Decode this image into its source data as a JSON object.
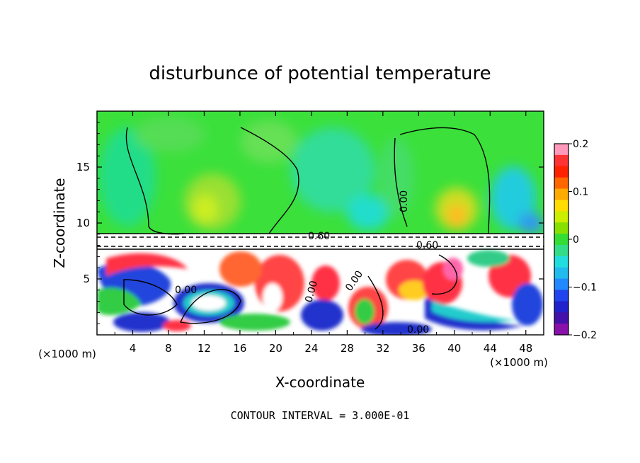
{
  "chart_data": {
    "type": "heatmap",
    "title": "disturbunce of potential temperature",
    "xlabel": "X-coordinate",
    "ylabel": "Z-coordinate",
    "x_unit_left": "(×1000 m)",
    "x_unit_right": "(×1000 m)",
    "xlim": [
      0,
      50
    ],
    "ylim": [
      0,
      20
    ],
    "x_ticks": [
      4,
      8,
      12,
      16,
      20,
      24,
      28,
      32,
      36,
      40,
      44,
      48
    ],
    "y_ticks": [
      5,
      10,
      15
    ],
    "colorbar": {
      "range": [
        -0.2,
        0.2
      ],
      "tick_labels": [
        "0.2",
        "0.1",
        "0",
        "−0.1",
        "−0.2"
      ],
      "tick_values": [
        0.2,
        0.1,
        0,
        -0.1,
        -0.2
      ]
    },
    "contour_labels": [
      "0.60",
      "0.60",
      "0.00",
      "0.00",
      "0.00",
      "0.00",
      "0.00"
    ],
    "footer": "CONTOUR INTERVAL = 3.000E-01",
    "colors": {
      "upper_field": "#33dd33",
      "warm": "#ff3333",
      "cold": "#2233cc",
      "saturated": "#ffffff"
    }
  }
}
